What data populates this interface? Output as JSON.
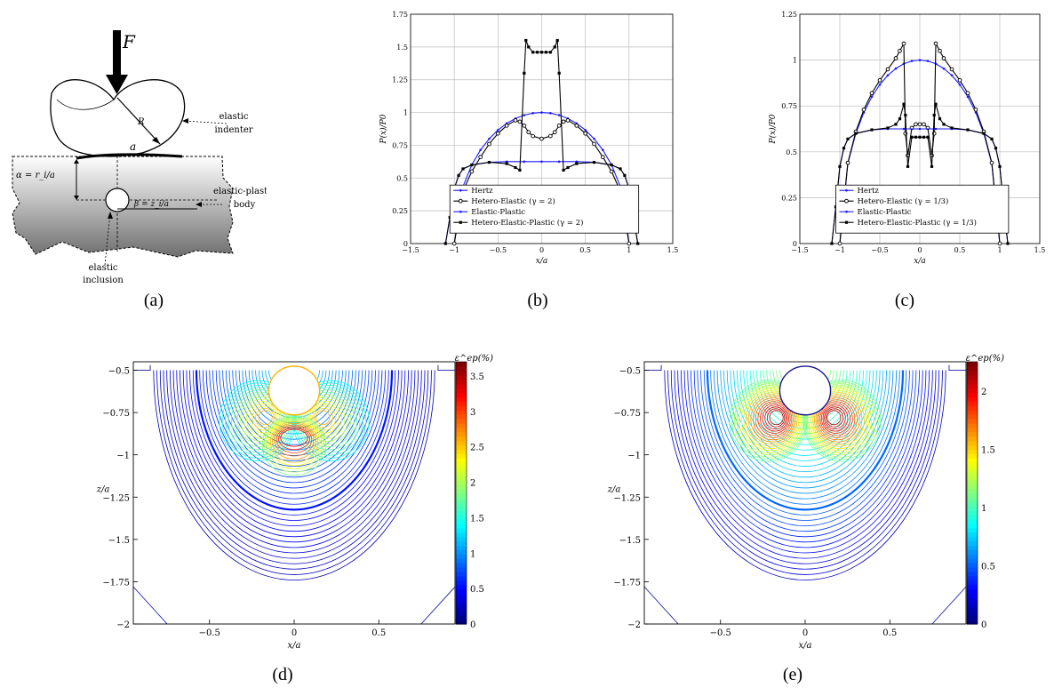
{
  "panel_a": {
    "force": "F",
    "radius": "R",
    "contact": "a",
    "alpha": "α = r_i/a",
    "beta": "β = z_i/a",
    "indenter_label": [
      "elastic",
      "indenter"
    ],
    "body_label": [
      "elastic-plastic",
      "body"
    ],
    "inclusion_label": [
      "elastic",
      "inclusion"
    ]
  },
  "captions": [
    "(a)",
    "(b)",
    "(c)",
    "(d)",
    "(e)"
  ],
  "chart_data": [
    {
      "type": "line",
      "panel": "b",
      "xlabel": "x/a",
      "ylabel": "P(x)/P0",
      "xlim": [
        -1.5,
        1.5
      ],
      "ylim": [
        0,
        1.75
      ],
      "xticks": [
        -1.5,
        -1,
        -0.5,
        0,
        0.5,
        1,
        1.5
      ],
      "yticks": [
        0,
        0.25,
        0.5,
        0.75,
        1,
        1.25,
        1.5,
        1.75
      ],
      "grid": true,
      "legend_position": "bottom-center",
      "legend": [
        "Hertz",
        "Hetero-Elastic (γ = 2)",
        "Elastic-Plastic",
        "Hetero-Elastic-Plastic (γ = 2)"
      ],
      "series": [
        {
          "name": "Hertz",
          "color": "#1a1aff",
          "marker": "dot",
          "x": [
            -1,
            -0.9,
            -0.8,
            -0.7,
            -0.6,
            -0.5,
            -0.4,
            -0.3,
            -0.2,
            -0.1,
            0,
            0.1,
            0.2,
            0.3,
            0.4,
            0.5,
            0.6,
            0.7,
            0.8,
            0.9,
            1
          ],
          "y": [
            0,
            0.436,
            0.6,
            0.714,
            0.8,
            0.866,
            0.917,
            0.954,
            0.98,
            0.995,
            1,
            0.995,
            0.98,
            0.954,
            0.917,
            0.866,
            0.8,
            0.714,
            0.6,
            0.436,
            0
          ]
        },
        {
          "name": "Hetero-Elastic (γ = 2)",
          "color": "#000000",
          "marker": "circle",
          "x": [
            -1,
            -0.9,
            -0.8,
            -0.7,
            -0.6,
            -0.5,
            -0.4,
            -0.3,
            -0.25,
            -0.2,
            -0.15,
            -0.1,
            0,
            0.1,
            0.15,
            0.2,
            0.25,
            0.3,
            0.4,
            0.5,
            0.6,
            0.7,
            0.8,
            0.9,
            1
          ],
          "y": [
            0,
            0.4,
            0.55,
            0.66,
            0.76,
            0.84,
            0.9,
            0.94,
            0.93,
            0.9,
            0.85,
            0.82,
            0.8,
            0.82,
            0.85,
            0.9,
            0.93,
            0.94,
            0.9,
            0.84,
            0.76,
            0.66,
            0.55,
            0.4,
            0
          ]
        },
        {
          "name": "Elastic-Plastic",
          "color": "#1a1aff",
          "marker": "dot",
          "x": [
            -1.1,
            -1.05,
            -1,
            -0.95,
            -0.9,
            -0.8,
            -0.6,
            -0.4,
            -0.2,
            0,
            0.2,
            0.4,
            0.6,
            0.8,
            0.9,
            0.95,
            1,
            1.05,
            1.1
          ],
          "y": [
            0,
            0.2,
            0.42,
            0.52,
            0.57,
            0.6,
            0.62,
            0.625,
            0.625,
            0.625,
            0.625,
            0.625,
            0.62,
            0.6,
            0.57,
            0.52,
            0.42,
            0.2,
            0
          ]
        },
        {
          "name": "Hetero-Elastic-Plastic (γ = 2)",
          "color": "#000000",
          "marker": "square",
          "x": [
            -1.1,
            -1.05,
            -1,
            -0.95,
            -0.9,
            -0.8,
            -0.6,
            -0.4,
            -0.3,
            -0.25,
            -0.2,
            -0.18,
            -0.15,
            -0.1,
            -0.05,
            0,
            0.05,
            0.1,
            0.15,
            0.18,
            0.2,
            0.25,
            0.3,
            0.4,
            0.6,
            0.8,
            0.9,
            0.95,
            1,
            1.05,
            1.1
          ],
          "y": [
            0,
            0.2,
            0.42,
            0.52,
            0.57,
            0.6,
            0.62,
            0.61,
            0.58,
            0.56,
            1.3,
            1.55,
            1.5,
            1.46,
            1.46,
            1.46,
            1.46,
            1.46,
            1.5,
            1.55,
            1.3,
            0.56,
            0.58,
            0.61,
            0.62,
            0.6,
            0.57,
            0.52,
            0.42,
            0.2,
            0
          ]
        }
      ]
    },
    {
      "type": "line",
      "panel": "c",
      "xlabel": "x/a",
      "ylabel": "P(x)/P0",
      "xlim": [
        -1.5,
        1.5
      ],
      "ylim": [
        0,
        1.25
      ],
      "xticks": [
        -1.5,
        -1,
        -0.5,
        0,
        0.5,
        1,
        1.5
      ],
      "yticks": [
        0,
        0.25,
        0.5,
        0.75,
        1,
        1.25
      ],
      "grid": true,
      "legend_position": "bottom-center",
      "legend": [
        "Hertz",
        "Hetero-Elastic (γ = 1/3)",
        "Elastic-Plastic",
        "Hetero-Elastic-Plastic (γ = 1/3)"
      ],
      "series": [
        {
          "name": "Hertz",
          "color": "#1a1aff",
          "marker": "dot",
          "x": [
            -1,
            -0.9,
            -0.8,
            -0.7,
            -0.6,
            -0.5,
            -0.4,
            -0.3,
            -0.2,
            -0.1,
            0,
            0.1,
            0.2,
            0.3,
            0.4,
            0.5,
            0.6,
            0.7,
            0.8,
            0.9,
            1
          ],
          "y": [
            0,
            0.436,
            0.6,
            0.714,
            0.8,
            0.866,
            0.917,
            0.954,
            0.98,
            0.995,
            1,
            0.995,
            0.98,
            0.954,
            0.917,
            0.866,
            0.8,
            0.714,
            0.6,
            0.436,
            0
          ]
        },
        {
          "name": "Hetero-Elastic (γ = 1/3)",
          "color": "#000000",
          "marker": "circle",
          "x": [
            -1,
            -0.9,
            -0.8,
            -0.7,
            -0.6,
            -0.5,
            -0.4,
            -0.3,
            -0.25,
            -0.2,
            -0.18,
            -0.15,
            -0.1,
            -0.05,
            0,
            0.05,
            0.1,
            0.15,
            0.18,
            0.2,
            0.25,
            0.3,
            0.4,
            0.5,
            0.6,
            0.7,
            0.8,
            0.9,
            1
          ],
          "y": [
            0,
            0.44,
            0.61,
            0.73,
            0.82,
            0.89,
            0.95,
            1.01,
            1.05,
            1.09,
            0.6,
            0.48,
            0.63,
            0.65,
            0.65,
            0.65,
            0.63,
            0.48,
            0.6,
            1.09,
            1.05,
            1.01,
            0.95,
            0.89,
            0.82,
            0.73,
            0.61,
            0.44,
            0
          ]
        },
        {
          "name": "Elastic-Plastic",
          "color": "#1a1aff",
          "marker": "dot",
          "x": [
            -1.1,
            -1.05,
            -1,
            -0.95,
            -0.9,
            -0.8,
            -0.6,
            -0.4,
            -0.2,
            0,
            0.2,
            0.4,
            0.6,
            0.8,
            0.9,
            0.95,
            1,
            1.05,
            1.1
          ],
          "y": [
            0,
            0.2,
            0.42,
            0.52,
            0.57,
            0.6,
            0.62,
            0.625,
            0.625,
            0.625,
            0.625,
            0.625,
            0.62,
            0.6,
            0.57,
            0.52,
            0.42,
            0.2,
            0
          ]
        },
        {
          "name": "Hetero-Elastic-Plastic (γ = 1/3)",
          "color": "#000000",
          "marker": "square",
          "x": [
            -1.1,
            -1.05,
            -1,
            -0.95,
            -0.9,
            -0.8,
            -0.6,
            -0.4,
            -0.3,
            -0.25,
            -0.2,
            -0.18,
            -0.15,
            -0.1,
            -0.05,
            0,
            0.05,
            0.1,
            0.15,
            0.18,
            0.2,
            0.25,
            0.3,
            0.4,
            0.6,
            0.8,
            0.9,
            0.95,
            1,
            1.05,
            1.1
          ],
          "y": [
            0,
            0.2,
            0.42,
            0.52,
            0.57,
            0.6,
            0.62,
            0.63,
            0.65,
            0.68,
            0.76,
            0.7,
            0.42,
            0.58,
            0.58,
            0.58,
            0.58,
            0.58,
            0.42,
            0.7,
            0.76,
            0.68,
            0.65,
            0.63,
            0.62,
            0.6,
            0.57,
            0.52,
            0.42,
            0.2,
            0
          ]
        }
      ]
    },
    {
      "type": "contour",
      "panel": "d",
      "xlabel": "x/a",
      "ylabel": "z/a",
      "xlim": [
        -0.95,
        0.95
      ],
      "ylim": [
        -2,
        -0.45
      ],
      "xticks": [
        -0.5,
        0,
        0.5
      ],
      "yticks": [
        -0.5,
        -0.75,
        -1,
        -1.25,
        -1.5,
        -1.75,
        -2
      ],
      "colorbar_label": "ε^ep(%)",
      "colorbar_ticks": [
        0,
        0.5,
        1,
        1.5,
        2,
        2.5,
        3,
        3.5
      ],
      "colorbar_range": [
        0,
        3.7
      ],
      "inclusion_center": [
        0,
        -0.62
      ],
      "inclusion_radius": 0.15
    },
    {
      "type": "contour",
      "panel": "e",
      "xlabel": "x/a",
      "ylabel": "z/a",
      "xlim": [
        -0.95,
        0.95
      ],
      "ylim": [
        -2,
        -0.45
      ],
      "xticks": [
        -0.5,
        0,
        0.5
      ],
      "yticks": [
        -0.5,
        -0.75,
        -1,
        -1.25,
        -1.5,
        -1.75,
        -2
      ],
      "colorbar_label": "ε^ep(%)",
      "colorbar_ticks": [
        0,
        0.5,
        1,
        1.5,
        2
      ],
      "colorbar_range": [
        0,
        2.25
      ],
      "inclusion_center": [
        0,
        -0.62
      ],
      "inclusion_radius": 0.15
    }
  ]
}
